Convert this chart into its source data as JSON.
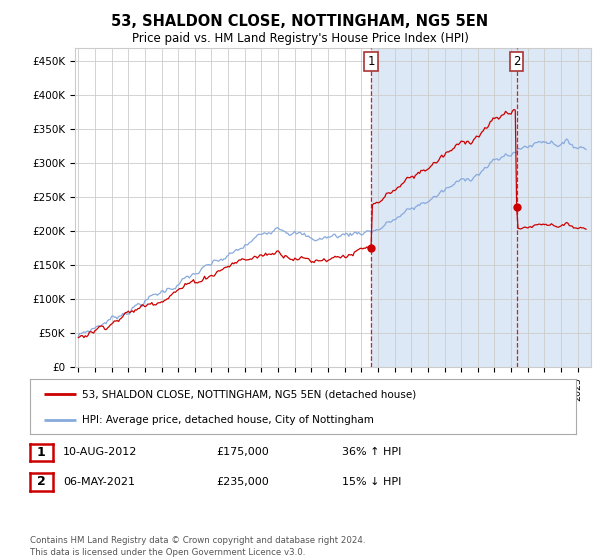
{
  "title": "53, SHALDON CLOSE, NOTTINGHAM, NG5 5EN",
  "subtitle": "Price paid vs. HM Land Registry's House Price Index (HPI)",
  "ylabel_ticks": [
    "£0",
    "£50K",
    "£100K",
    "£150K",
    "£200K",
    "£250K",
    "£300K",
    "£350K",
    "£400K",
    "£450K"
  ],
  "ytick_values": [
    0,
    50000,
    100000,
    150000,
    200000,
    250000,
    300000,
    350000,
    400000,
    450000
  ],
  "ylim": [
    0,
    470000
  ],
  "xlim_start": 1994.8,
  "xlim_end": 2025.8,
  "red_color": "#cc0000",
  "blue_color": "#88aadd",
  "point1_x": 2012.58,
  "point1_y": 175000,
  "point2_x": 2021.33,
  "point2_y": 235000,
  "shade_color": "#dce8f5",
  "legend_line1": "53, SHALDON CLOSE, NOTTINGHAM, NG5 5EN (detached house)",
  "legend_line2": "HPI: Average price, detached house, City of Nottingham",
  "table_row1_num": "1",
  "table_row1_date": "10-AUG-2012",
  "table_row1_price": "£175,000",
  "table_row1_hpi": "36% ↑ HPI",
  "table_row2_num": "2",
  "table_row2_date": "06-MAY-2021",
  "table_row2_price": "£235,000",
  "table_row2_hpi": "15% ↓ HPI",
  "footer": "Contains HM Land Registry data © Crown copyright and database right 2024.\nThis data is licensed under the Open Government Licence v3.0.",
  "background_color": "#ffffff",
  "grid_color": "#cccccc",
  "border_color": "#aaaaaa"
}
